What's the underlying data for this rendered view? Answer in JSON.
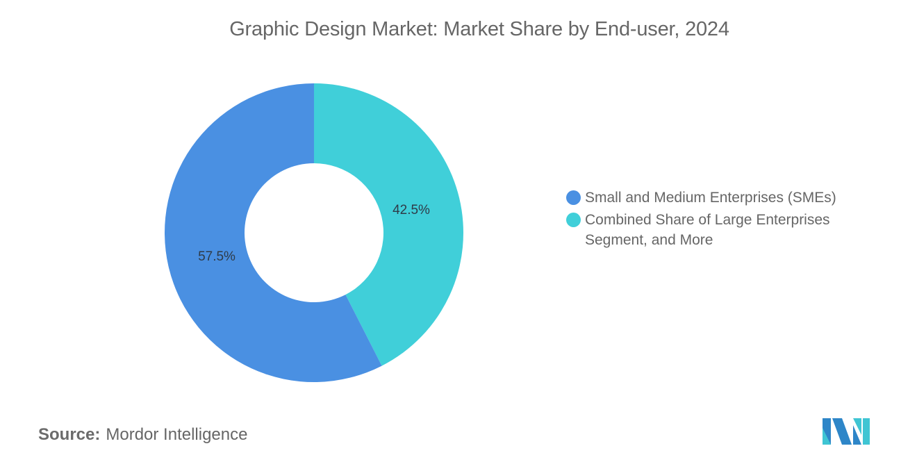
{
  "title": "Graphic Design Market: Market Share by End-user, 2024",
  "chart_data": {
    "type": "pie",
    "variant": "donut",
    "title": "Graphic Design Market: Market Share by End-user, 2024",
    "categories": [
      "Small and Medium Enterprises (SMEs)",
      "Combined Share of Large Enterprises Segment, and More"
    ],
    "values": [
      57.5,
      42.5
    ],
    "unit": "%",
    "colors": [
      "#4A90E2",
      "#40CFD9"
    ],
    "data_labels": [
      "57.5%",
      "42.5%"
    ],
    "legend_position": "right",
    "start_angle": "12 o'clock, clockwise starting with Combined Share of Large Enterprises Segment, and More"
  },
  "slices": [
    {
      "name": "Small and Medium Enterprises (SMEs)",
      "value": 57.5,
      "label": "57.5%",
      "color": "#4A90E2"
    },
    {
      "name": "Combined Share of Large Enterprises Segment, and More",
      "value": 42.5,
      "label": "42.5%",
      "color": "#40CFD9"
    }
  ],
  "legend": {
    "items": [
      {
        "label": "Small and Medium Enterprises (SMEs)",
        "color": "#4A90E2"
      },
      {
        "label": "Combined Share of Large Enterprises Segment, and More",
        "color": "#40CFD9"
      }
    ]
  },
  "footer": {
    "source_key": "Source:",
    "source_value": "Mordor Intelligence"
  },
  "logo": {
    "icon": "mordor-intelligence-logo-icon",
    "colors": [
      "#3FC5D3",
      "#2E86C8"
    ]
  }
}
